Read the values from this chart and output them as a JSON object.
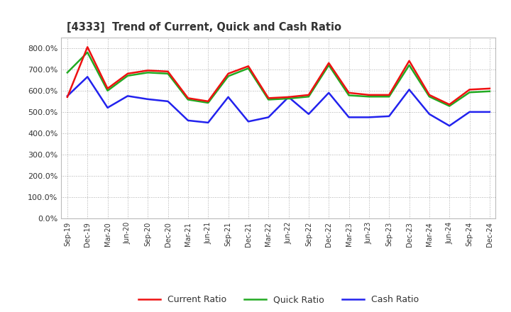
{
  "title": "[4333]  Trend of Current, Quick and Cash Ratio",
  "x_labels": [
    "Sep-19",
    "Dec-19",
    "Mar-20",
    "Jun-20",
    "Sep-20",
    "Dec-20",
    "Mar-21",
    "Jun-21",
    "Sep-21",
    "Dec-21",
    "Mar-22",
    "Jun-22",
    "Sep-22",
    "Dec-22",
    "Mar-23",
    "Jun-23",
    "Sep-23",
    "Dec-23",
    "Mar-24",
    "Jun-24",
    "Sep-24",
    "Dec-24"
  ],
  "current_ratio": [
    570,
    805,
    610,
    680,
    695,
    690,
    565,
    550,
    680,
    715,
    565,
    570,
    580,
    730,
    590,
    580,
    580,
    740,
    580,
    535,
    605,
    610
  ],
  "quick_ratio": [
    685,
    780,
    600,
    670,
    685,
    680,
    558,
    543,
    668,
    705,
    558,
    563,
    572,
    720,
    578,
    572,
    572,
    720,
    572,
    528,
    592,
    597
  ],
  "cash_ratio": [
    575,
    665,
    520,
    575,
    560,
    550,
    460,
    450,
    570,
    455,
    475,
    570,
    490,
    590,
    475,
    475,
    480,
    605,
    490,
    435,
    500,
    500
  ],
  "current_color": "#ee1111",
  "quick_color": "#22aa22",
  "cash_color": "#2222ee",
  "ylim": [
    0,
    850
  ],
  "yticks": [
    0,
    100,
    200,
    300,
    400,
    500,
    600,
    700,
    800
  ],
  "background_color": "#ffffff",
  "plot_bg_color": "#ffffff",
  "grid_color": "#999999",
  "legend_labels": [
    "Current Ratio",
    "Quick Ratio",
    "Cash Ratio"
  ],
  "title_color": "#333333",
  "tick_color": "#333333"
}
